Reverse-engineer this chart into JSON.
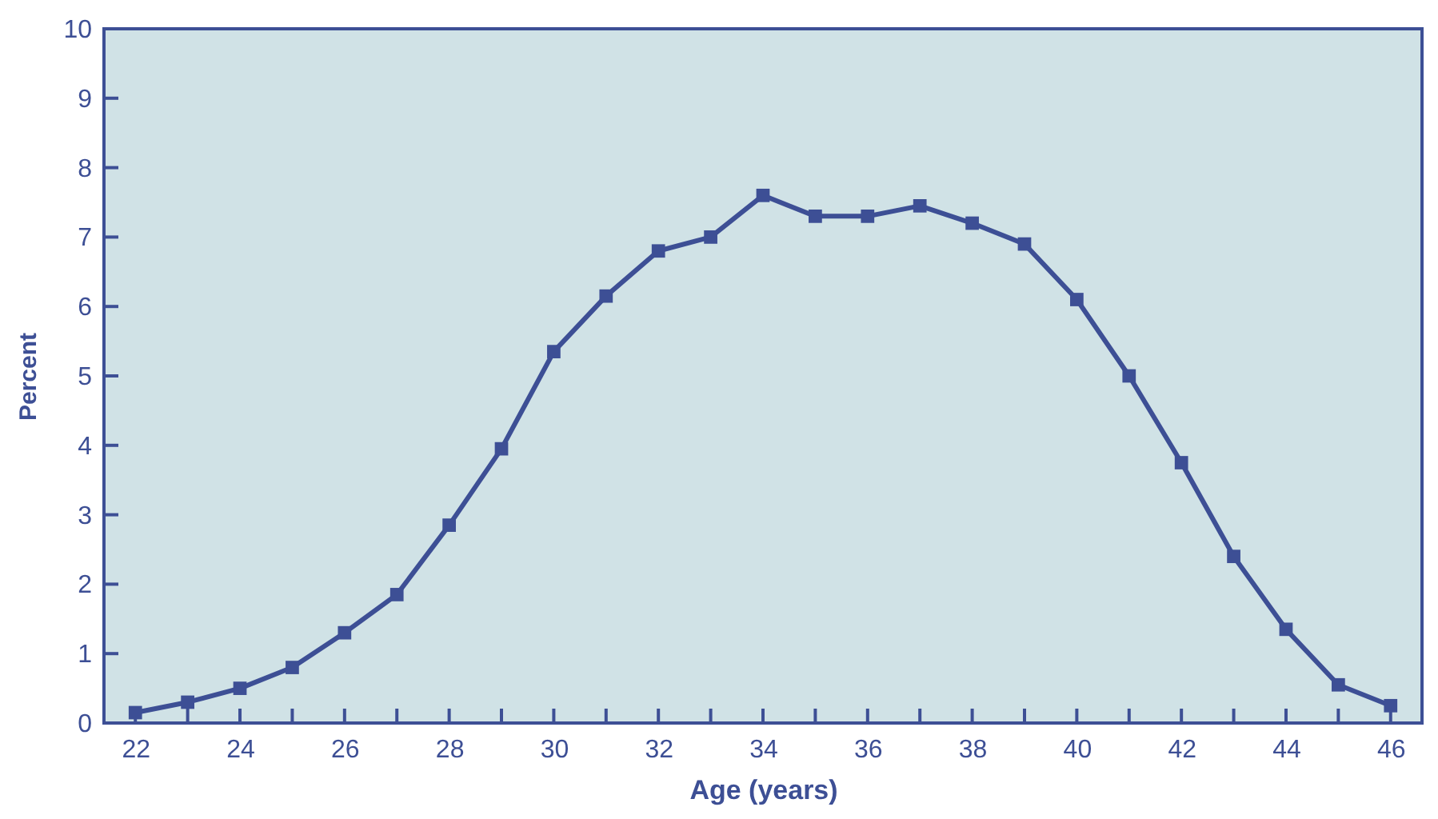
{
  "chart_data": {
    "type": "line",
    "xlabel": "Age (years)",
    "ylabel": "Percent",
    "x": [
      22,
      23,
      24,
      25,
      26,
      27,
      28,
      29,
      30,
      31,
      32,
      33,
      34,
      35,
      36,
      37,
      38,
      39,
      40,
      41,
      42,
      43,
      44,
      45,
      46
    ],
    "series": [
      {
        "color": "#3d4f95",
        "values": [
          0.15,
          0.3,
          0.5,
          0.8,
          1.3,
          1.85,
          2.85,
          3.95,
          5.35,
          6.15,
          6.8,
          7.0,
          7.6,
          7.3,
          7.3,
          7.45,
          7.2,
          6.9,
          6.1,
          5.0,
          3.75,
          2.4,
          1.35,
          0.55,
          0.25
        ]
      }
    ],
    "xlim": [
      21.4,
      46.6
    ],
    "xticks": [
      22,
      {
        "value": 23,
        "label": null
      },
      24,
      {
        "value": 25,
        "label": null
      },
      26,
      {
        "value": 27,
        "label": null
      },
      28,
      {
        "value": 29,
        "label": null
      },
      30,
      {
        "value": 31,
        "label": null
      },
      32,
      {
        "value": 33,
        "label": null
      },
      34,
      {
        "value": 35,
        "label": null
      },
      36,
      {
        "value": 37,
        "label": null
      },
      38,
      {
        "value": 39,
        "label": null
      },
      40,
      {
        "value": 41,
        "label": null
      },
      42,
      {
        "value": 43,
        "label": null
      },
      44,
      {
        "value": 45,
        "label": null
      },
      46
    ],
    "ylim": [
      0,
      10
    ],
    "yticks": [
      0,
      1,
      2,
      3,
      4,
      5,
      6,
      7,
      8,
      9,
      10
    ],
    "grid": false,
    "legend": false,
    "marker": "square",
    "line_style": "solid"
  }
}
